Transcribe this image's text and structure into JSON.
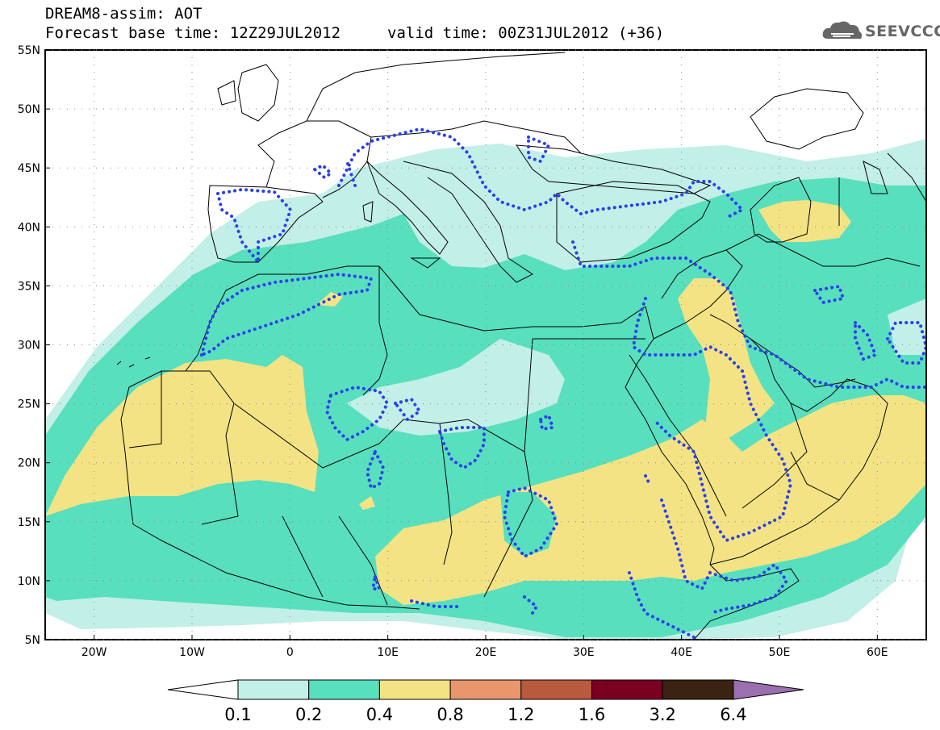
{
  "header": {
    "title": "DREAM8-assim: AOT",
    "base_label": "Forecast base time: 12Z29JUL2012",
    "valid_label": "valid time: 00Z31JUL2012 (+36)"
  },
  "logo": {
    "text": "SEEVCCC",
    "icon": "cloud-icon"
  },
  "map": {
    "lon_labels": [
      "20W",
      "10W",
      "0",
      "10E",
      "20E",
      "30E",
      "40E",
      "50E",
      "60E"
    ],
    "lat_labels": [
      "55N",
      "50N",
      "45N",
      "40N",
      "35N",
      "30N",
      "25N",
      "20N",
      "15N",
      "10N",
      "5N"
    ],
    "colors": {
      "c01": "#c2efe7",
      "c02": "#58dfbe",
      "c04": "#f4e384",
      "c08": "#e9966c",
      "c12": "#b85a3e",
      "c16": "#7a0022",
      "c32": "#3a2313",
      "c64": "#9b70b0",
      "dots": "#2a3fee",
      "borders": "#000000"
    }
  },
  "colorbar": {
    "labels": [
      "0.1",
      "0.2",
      "0.4",
      "0.8",
      "1.2",
      "1.6",
      "3.2",
      "6.4"
    ]
  }
}
